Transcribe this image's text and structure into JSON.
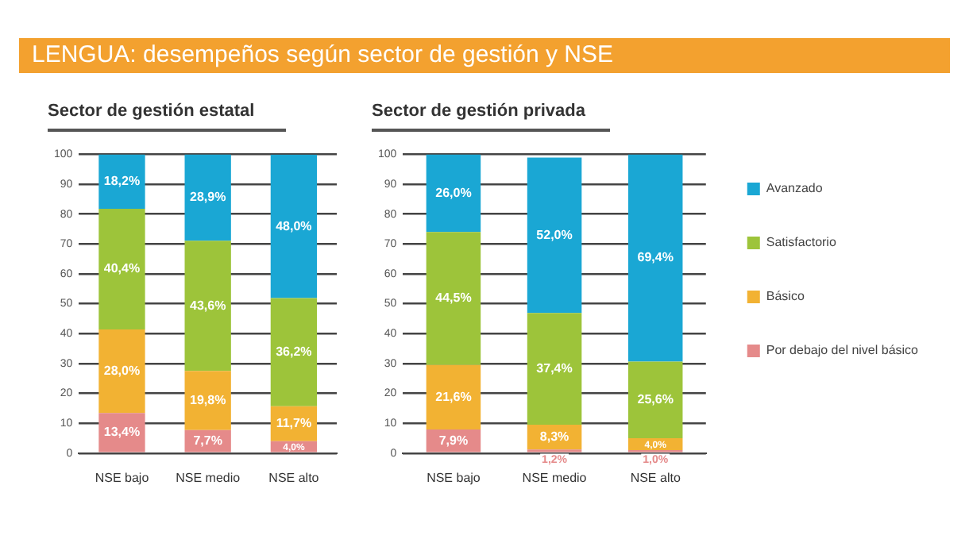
{
  "chart_data": [
    {
      "type": "bar",
      "title": "Sector de gestión estatal",
      "annotations": [
        "LENGUA: desempeños según sector de gestión y NSE"
      ],
      "categories": [
        "NSE bajo",
        "NSE medio",
        "NSE alto"
      ],
      "stacked": true,
      "ylim": [
        0,
        100
      ],
      "yticks": [
        0,
        10,
        20,
        30,
        40,
        50,
        60,
        70,
        80,
        90,
        100
      ],
      "grid": "y",
      "legend": false,
      "series": [
        {
          "color": "#e58a8a",
          "values": [
            13.4,
            7.7,
            4.0
          ],
          "value_labels": [
            "13,4%",
            "7,7%",
            "4,0%"
          ]
        },
        {
          "color": "#f2b233",
          "values": [
            28.0,
            19.8,
            11.7
          ],
          "value_labels": [
            "28,0%",
            "19,8%",
            "11,7%"
          ]
        },
        {
          "color": "#9dc43a",
          "values": [
            40.4,
            43.6,
            36.2
          ],
          "value_labels": [
            "40,4%",
            "43,6%",
            "36,2%"
          ]
        },
        {
          "color": "#1aa7d4",
          "values": [
            18.2,
            28.9,
            48.0
          ],
          "value_labels": [
            "18,2%",
            "28,9%",
            "48,0%"
          ]
        }
      ]
    },
    {
      "type": "bar",
      "title": "Sector de gestión privada",
      "categories": [
        "NSE bajo",
        "NSE medio",
        "NSE alto"
      ],
      "stacked": true,
      "ylim": [
        0,
        100
      ],
      "yticks": [
        0,
        10,
        20,
        30,
        40,
        50,
        60,
        70,
        80,
        90,
        100
      ],
      "grid": "y",
      "legend": "right",
      "series": [
        {
          "name": "Por debajo del nivel básico",
          "color": "#e58a8a",
          "values": [
            7.9,
            1.2,
            1.0
          ],
          "value_labels": [
            "7,9%",
            "1,2%",
            "1,0%"
          ]
        },
        {
          "name": "Básico",
          "color": "#f2b233",
          "values": [
            21.6,
            8.3,
            4.0
          ],
          "value_labels": [
            "21,6%",
            "8,3%",
            "4,0%"
          ]
        },
        {
          "name": "Satisfactorio",
          "color": "#9dc43a",
          "values": [
            44.5,
            37.4,
            25.6
          ],
          "value_labels": [
            "44,5%",
            "37,4%",
            "25,6%"
          ]
        },
        {
          "name": "Avanzado",
          "color": "#1aa7d4",
          "values": [
            26.0,
            52.0,
            69.4
          ],
          "value_labels": [
            "26,0%",
            "52,0%",
            "69,4%"
          ]
        }
      ]
    }
  ]
}
